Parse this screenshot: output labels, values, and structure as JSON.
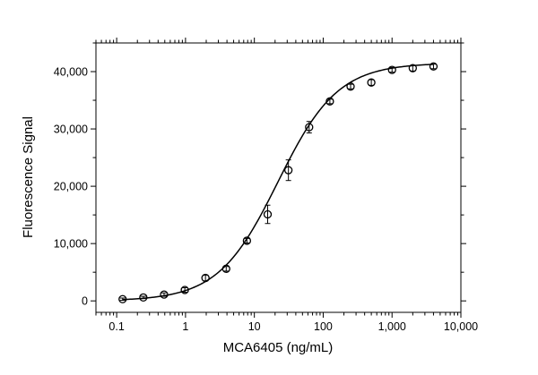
{
  "chart_data": {
    "type": "scatter",
    "title": "",
    "xlabel": "MCA6405 (ng/mL)",
    "ylabel": "Fluorescence Signal",
    "x_scale": "log",
    "xlim": [
      0.05,
      10000
    ],
    "ylim": [
      -2000,
      45000
    ],
    "x_ticks": [
      0.1,
      1,
      10,
      100,
      1000,
      10000
    ],
    "x_tick_labels": [
      "0.1",
      "1",
      "10",
      "100",
      "1,000",
      "10,000"
    ],
    "y_ticks": [
      0,
      10000,
      20000,
      30000,
      40000
    ],
    "y_tick_labels": [
      "0",
      "10,000",
      "20,000",
      "30,000",
      "40,000"
    ],
    "grid": false,
    "legend": "none",
    "marker": "open-circle",
    "colors": {
      "line": "#000000",
      "marker": "#000000"
    },
    "points": [
      {
        "x": 0.122,
        "y": 300,
        "err": 200
      },
      {
        "x": 0.244,
        "y": 600,
        "err": 200
      },
      {
        "x": 0.488,
        "y": 1100,
        "err": 300
      },
      {
        "x": 0.977,
        "y": 1900,
        "err": 400
      },
      {
        "x": 1.95,
        "y": 4000,
        "err": 500
      },
      {
        "x": 3.9,
        "y": 5600,
        "err": 400
      },
      {
        "x": 7.8,
        "y": 10500,
        "err": 400
      },
      {
        "x": 15.6,
        "y": 15100,
        "err": 1600
      },
      {
        "x": 31.25,
        "y": 22800,
        "err": 1800
      },
      {
        "x": 62.5,
        "y": 30300,
        "err": 1000
      },
      {
        "x": 125,
        "y": 34800,
        "err": 400
      },
      {
        "x": 250,
        "y": 37400,
        "err": 400
      },
      {
        "x": 500,
        "y": 38100,
        "err": 500
      },
      {
        "x": 1000,
        "y": 40300,
        "err": 400
      },
      {
        "x": 2000,
        "y": 40600,
        "err": 500
      },
      {
        "x": 4000,
        "y": 40900,
        "err": 400
      }
    ],
    "fit_curve": {
      "model": "4PL",
      "bottom": 0,
      "top": 41500,
      "ec50": 22,
      "hill": 1.0,
      "x_range": [
        0.122,
        4000
      ]
    }
  }
}
